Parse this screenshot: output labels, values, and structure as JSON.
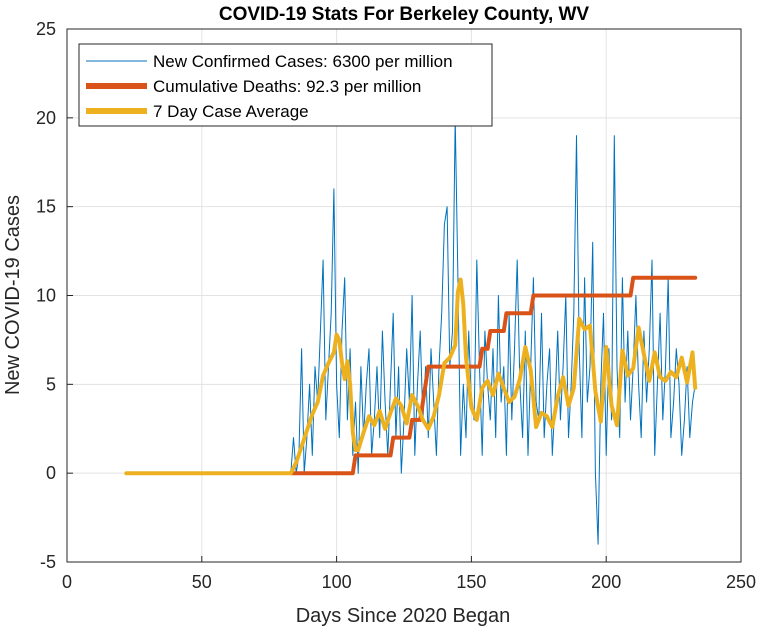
{
  "chart_data": {
    "type": "line",
    "title": "COVID-19 Stats For Berkeley County, WV",
    "xlabel": "Days Since 2020 Began",
    "ylabel": "New COVID-19 Cases",
    "xlim": [
      0,
      250
    ],
    "ylim": [
      -5,
      25
    ],
    "xticks": [
      0,
      50,
      100,
      150,
      200,
      250
    ],
    "yticks": [
      -5,
      0,
      5,
      10,
      15,
      20,
      25
    ],
    "grid": true,
    "legend_position": "top-left",
    "series": [
      {
        "name": "New Confirmed Cases: 6300 per million",
        "color": "#0072BD",
        "line_width": 1,
        "x": [
          22,
          30,
          40,
          50,
          60,
          70,
          80,
          83,
          84,
          85,
          86,
          87,
          88,
          89,
          90,
          91,
          92,
          93,
          94,
          95,
          96,
          97,
          98,
          99,
          100,
          101,
          102,
          103,
          104,
          105,
          106,
          107,
          108,
          109,
          110,
          111,
          112,
          113,
          114,
          115,
          116,
          117,
          118,
          119,
          120,
          121,
          122,
          123,
          124,
          125,
          126,
          127,
          128,
          129,
          130,
          131,
          132,
          133,
          134,
          135,
          136,
          137,
          138,
          139,
          140,
          141,
          142,
          143,
          144,
          145,
          146,
          147,
          148,
          149,
          150,
          151,
          152,
          153,
          154,
          155,
          156,
          157,
          158,
          159,
          160,
          161,
          162,
          163,
          164,
          165,
          166,
          167,
          168,
          169,
          170,
          171,
          172,
          173,
          174,
          175,
          176,
          177,
          178,
          179,
          180,
          181,
          182,
          183,
          184,
          185,
          186,
          187,
          188,
          189,
          190,
          191,
          192,
          193,
          194,
          195,
          196,
          197,
          198,
          199,
          200,
          201,
          202,
          203,
          204,
          205,
          206,
          207,
          208,
          209,
          210,
          211,
          212,
          213,
          214,
          215,
          216,
          217,
          218,
          219,
          220,
          221,
          222,
          223,
          224,
          225,
          226,
          227,
          228,
          229,
          230,
          231,
          232,
          233
        ],
        "values": [
          0,
          0,
          0,
          0,
          0,
          0,
          0,
          0,
          2,
          0,
          1,
          7,
          0,
          2,
          5,
          1,
          6,
          4,
          8,
          12,
          3,
          6,
          9,
          16,
          5,
          2,
          8,
          11,
          3,
          7,
          1,
          4,
          0,
          6,
          2,
          5,
          7,
          1,
          3,
          6,
          2,
          8,
          4,
          1,
          5,
          9,
          2,
          6,
          0,
          3,
          7,
          4,
          10,
          1,
          5,
          8,
          3,
          6,
          2,
          7,
          4,
          1,
          6,
          9,
          14,
          15,
          6,
          8,
          20,
          11,
          1,
          5,
          2,
          8,
          4,
          3,
          12,
          6,
          1,
          8,
          5,
          3,
          7,
          2,
          10,
          4,
          6,
          1,
          9,
          3,
          7,
          12,
          5,
          2,
          8,
          1,
          6,
          11,
          4,
          3,
          9,
          2,
          5,
          7,
          1,
          4,
          8,
          3,
          6,
          10,
          2,
          5,
          9,
          19,
          7,
          2,
          11,
          4,
          6,
          13,
          0,
          -4,
          5,
          9,
          1,
          7,
          3,
          19,
          6,
          2,
          11,
          4,
          8,
          3,
          6,
          10,
          5,
          2,
          8,
          4,
          7,
          12,
          1,
          5,
          9,
          3,
          6,
          11,
          2,
          4,
          7,
          5,
          1,
          3,
          6,
          2,
          4,
          5
        ]
      },
      {
        "name": "Cumulative Deaths: 92.3 per million",
        "color": "#D95319",
        "line_width": 4,
        "x": [
          83,
          84,
          106,
          107,
          120,
          121,
          127,
          128,
          131,
          132,
          133,
          134,
          153,
          154,
          156,
          157,
          162,
          163,
          172,
          173,
          209,
          210,
          233
        ],
        "values": [
          0,
          0,
          0,
          1,
          1,
          2,
          2,
          3,
          3,
          4,
          5,
          6,
          6,
          7,
          7,
          8,
          8,
          9,
          9,
          10,
          10,
          11,
          11
        ]
      },
      {
        "name": "7 Day Case Average",
        "color": "#EDB120",
        "line_width": 4,
        "x": [
          22,
          30,
          40,
          50,
          60,
          70,
          80,
          83,
          85,
          87,
          89,
          91,
          93,
          95,
          97,
          99,
          100,
          101,
          102,
          103,
          104,
          105,
          106,
          107,
          108,
          109,
          110,
          112,
          114,
          116,
          118,
          120,
          122,
          124,
          126,
          128,
          130,
          132,
          134,
          136,
          138,
          140,
          142,
          144,
          145,
          146,
          147,
          148,
          150,
          152,
          154,
          156,
          158,
          160,
          162,
          164,
          166,
          168,
          170,
          172,
          174,
          176,
          178,
          180,
          182,
          184,
          186,
          188,
          190,
          192,
          194,
          196,
          198,
          200,
          202,
          204,
          206,
          208,
          210,
          212,
          214,
          216,
          218,
          220,
          222,
          224,
          226,
          228,
          230,
          232,
          233
        ],
        "values": [
          0,
          0,
          0,
          0,
          0,
          0,
          0,
          0,
          0.6,
          1.5,
          2.4,
          3.3,
          4,
          5.5,
          6.2,
          6.8,
          7.8,
          7.5,
          6.2,
          5.3,
          6.3,
          5,
          2.3,
          1.3,
          1.3,
          1.8,
          2.3,
          3.2,
          2.7,
          3.5,
          2.5,
          3.4,
          4.2,
          3.8,
          2.8,
          4.4,
          3.8,
          3,
          2.5,
          3.2,
          4.4,
          6.2,
          6.5,
          7.2,
          10.2,
          10.9,
          9.5,
          6.5,
          3.7,
          3,
          4.8,
          5.2,
          4.4,
          5.6,
          4.8,
          4,
          4.3,
          5.3,
          7.1,
          5.8,
          2.6,
          3.4,
          3.2,
          2.6,
          4.3,
          5.4,
          3.8,
          4.8,
          8.7,
          8.1,
          8.3,
          4.6,
          2.9,
          7.1,
          3.8,
          2.7,
          6.9,
          5.5,
          5.9,
          8.2,
          6.7,
          5.2,
          6.8,
          5.4,
          5.2,
          5.7,
          5.4,
          6.5,
          5.1,
          6.8,
          4.8
        ]
      }
    ]
  }
}
